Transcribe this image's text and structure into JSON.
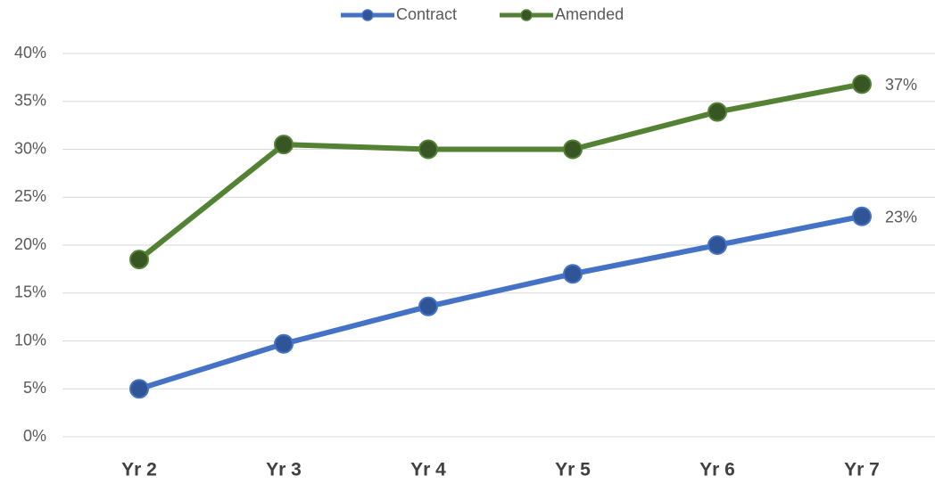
{
  "chart_data": {
    "type": "line",
    "categories": [
      "Yr 2",
      "Yr 3",
      "Yr 4",
      "Yr 5",
      "Yr 6",
      "Yr 7"
    ],
    "series": [
      {
        "name": "Contract",
        "color": "#4472c4",
        "marker_color": "#2f5597",
        "values": [
          5,
          9.7,
          13.6,
          17,
          20,
          23
        ],
        "value_labels": [
          null,
          null,
          null,
          null,
          null,
          "23%"
        ]
      },
      {
        "name": "Amended",
        "color": "#548235",
        "marker_color": "#375623",
        "values": [
          18.5,
          30.5,
          30,
          30,
          33.9,
          36.8
        ],
        "value_labels": [
          null,
          null,
          null,
          null,
          null,
          "37%"
        ]
      }
    ],
    "ylim": [
      0,
      40
    ],
    "yticks": [
      {
        "value": 0,
        "label": "0%"
      },
      {
        "value": 5,
        "label": "5%"
      },
      {
        "value": 10,
        "label": "10%"
      },
      {
        "value": 15,
        "label": "15%"
      },
      {
        "value": 20,
        "label": "20%"
      },
      {
        "value": 25,
        "label": "25%"
      },
      {
        "value": 30,
        "label": "30%"
      },
      {
        "value": 35,
        "label": "35%"
      },
      {
        "value": 40,
        "label": "40%"
      }
    ],
    "grid": true,
    "legend": "top"
  }
}
